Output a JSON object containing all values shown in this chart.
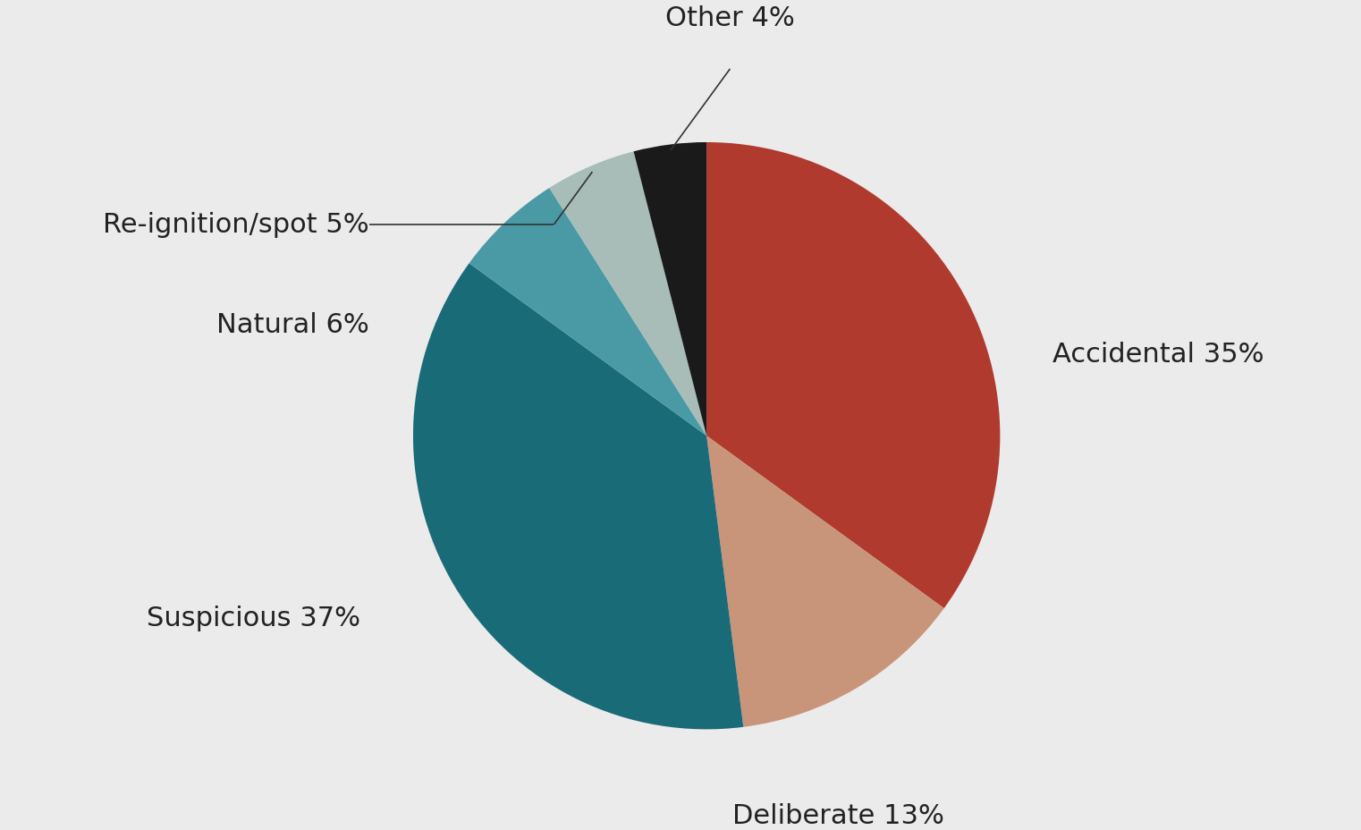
{
  "labels": [
    "Accidental",
    "Deliberate",
    "Suspicious",
    "Natural",
    "Re-ignition/spot",
    "Other"
  ],
  "values": [
    35,
    13,
    37,
    6,
    5,
    4
  ],
  "colors": [
    "#B03A2E",
    "#C9957A",
    "#1A6B78",
    "#4A9AA5",
    "#A8BDB8",
    "#1A1A1A"
  ],
  "background_color": "#EBEBEB",
  "startangle": 90,
  "font_size": 22,
  "text_color": "#222222",
  "line_color": "#333333"
}
